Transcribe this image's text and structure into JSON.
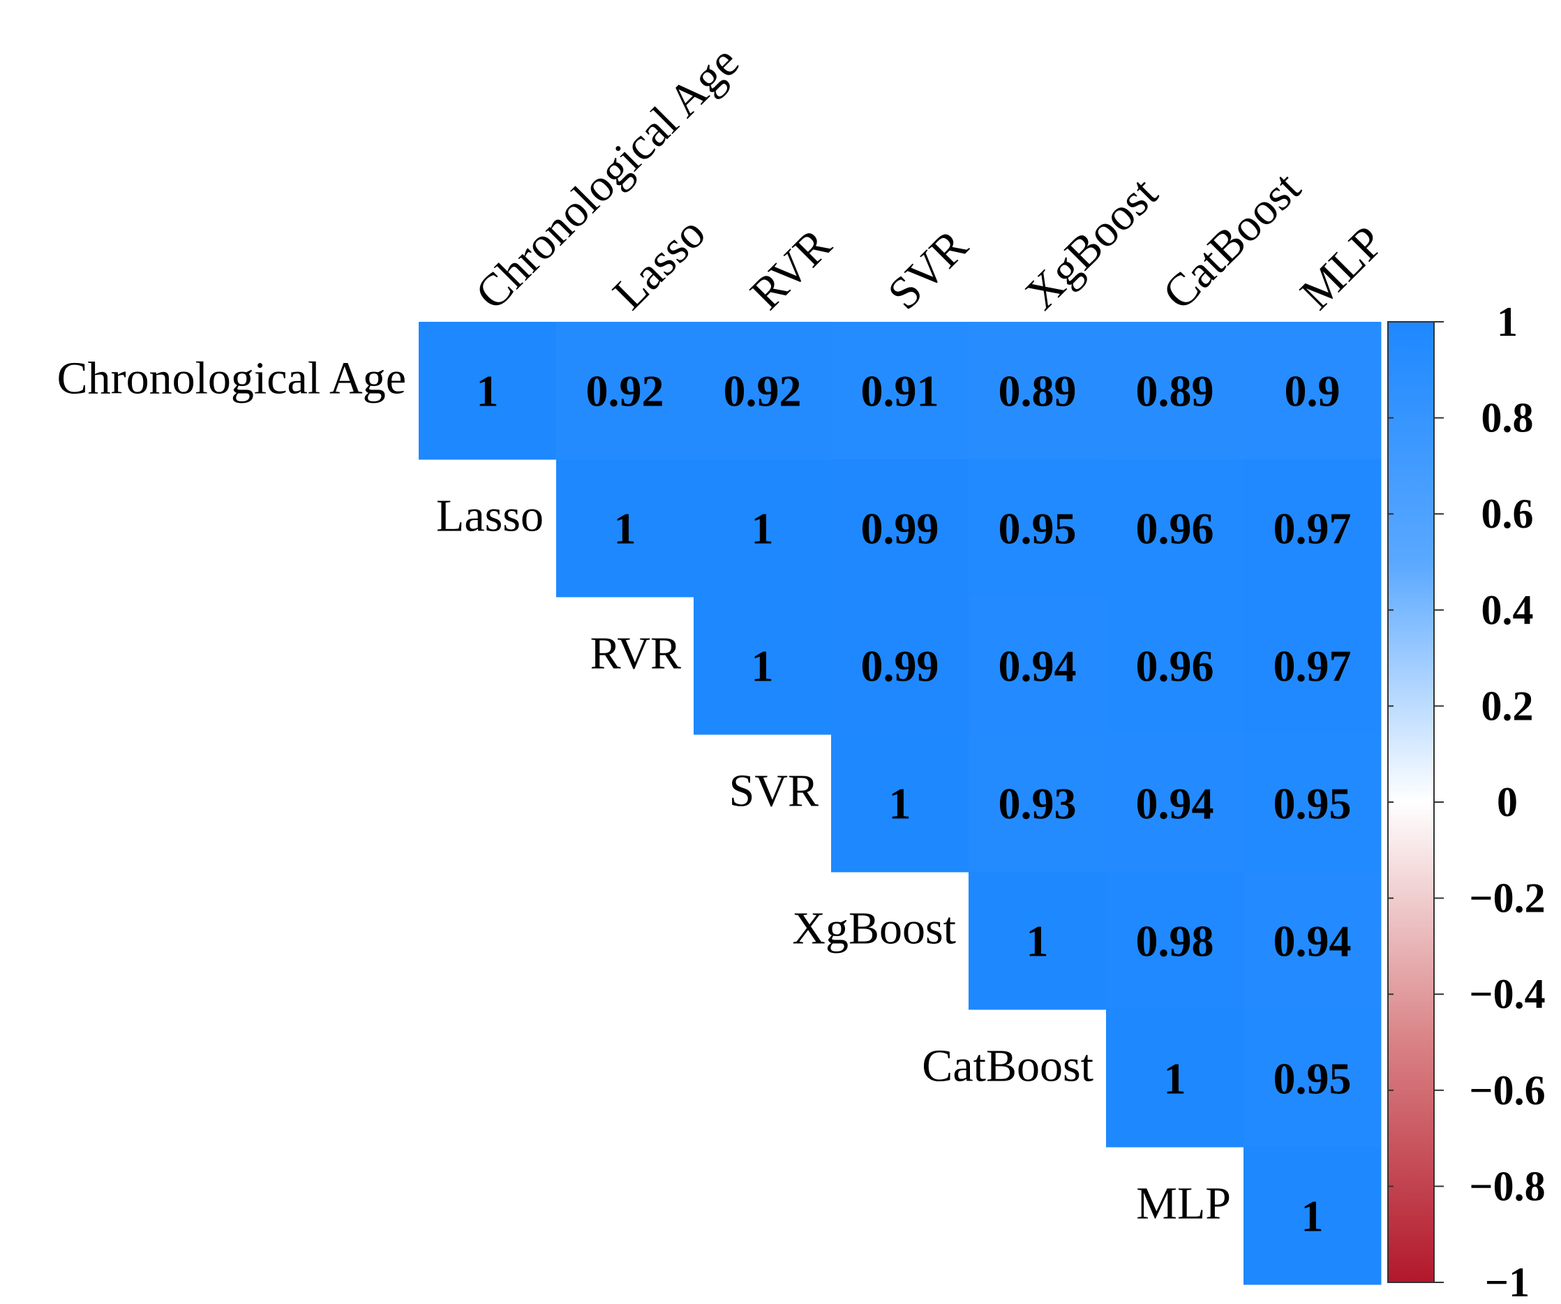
{
  "chart_data": {
    "type": "heatmap",
    "title": "",
    "variables": [
      "Chronological Age",
      "Lasso",
      "RVR",
      "SVR",
      "XgBoost",
      "CatBoost",
      "MLP"
    ],
    "upper_triangle": [
      [
        "1",
        "0.92",
        "0.92",
        "0.91",
        "0.89",
        "0.89",
        "0.9"
      ],
      [
        "1",
        "1",
        "0.99",
        "0.95",
        "0.96",
        "0.97"
      ],
      [
        "1",
        "0.99",
        "0.94",
        "0.96",
        "0.97"
      ],
      [
        "1",
        "0.93",
        "0.94",
        "0.95"
      ],
      [
        "1",
        "0.98",
        "0.94"
      ],
      [
        "1",
        "0.95"
      ],
      [
        "1"
      ]
    ],
    "colorbar": {
      "range": [
        -1,
        1
      ],
      "ticks": [
        "1",
        "0.8",
        "0.6",
        "0.4",
        "0.2",
        "0",
        "−0.2",
        "−0.4",
        "−0.6",
        "−0.8",
        "−1"
      ],
      "tick_values": [
        1,
        0.8,
        0.6,
        0.4,
        0.2,
        0,
        -0.2,
        -0.4,
        -0.6,
        -0.8,
        -1
      ],
      "color_high": "#1e88ff",
      "color_mid": "#ffffff",
      "color_low": "#b2182b"
    }
  }
}
